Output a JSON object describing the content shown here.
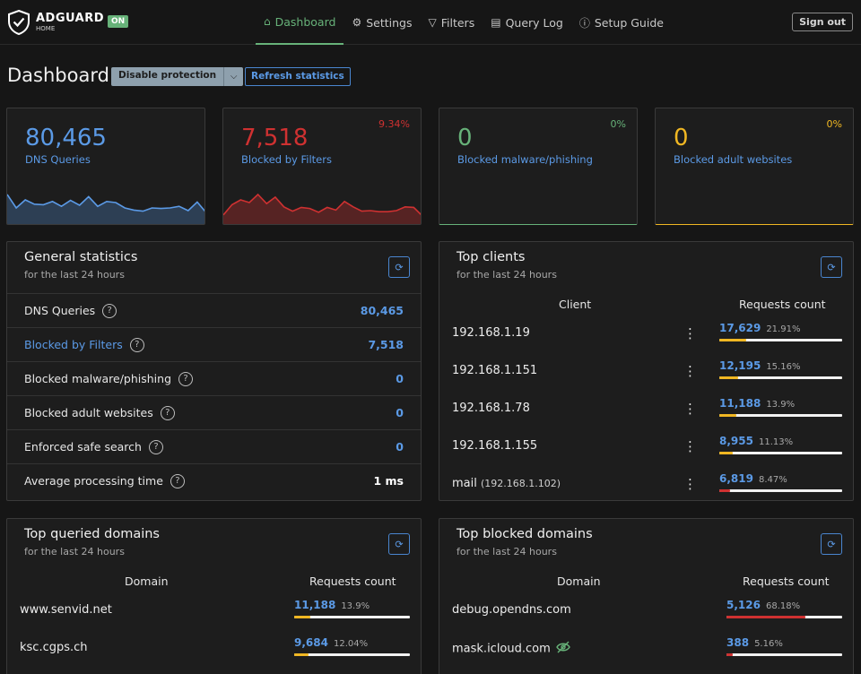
{
  "header": {
    "logo_title": "ADGUARD",
    "logo_sub": "HOME",
    "status_badge": "ON",
    "nav": [
      {
        "label": "Dashboard",
        "icon": "home-icon",
        "glyph": "⌂",
        "active": true
      },
      {
        "label": "Settings",
        "icon": "gear-icon",
        "glyph": "⚙",
        "active": false
      },
      {
        "label": "Filters",
        "icon": "filter-icon",
        "glyph": "▽",
        "active": false
      },
      {
        "label": "Query Log",
        "icon": "document-icon",
        "glyph": "▤",
        "active": false
      },
      {
        "label": "Setup Guide",
        "icon": "help-circle-icon",
        "glyph": "ⓘ",
        "active": false
      }
    ],
    "signout_label": "Sign out"
  },
  "page": {
    "title": "Dashboard",
    "disable_label": "Disable protection",
    "refresh_label": "Refresh statistics"
  },
  "colors": {
    "blue": "#5b9ae6",
    "red": "#cf3131",
    "green": "#67b279",
    "yellow": "#f0b723"
  },
  "stat_cards": {
    "dns": {
      "value": "80,465",
      "label": "DNS Queries",
      "pct": ""
    },
    "blocked": {
      "value": "7,518",
      "label": "Blocked by Filters",
      "pct": "9.34%"
    },
    "malware": {
      "value": "0",
      "label": "Blocked malware/phishing",
      "pct": "0%"
    },
    "adult": {
      "value": "0",
      "label": "Blocked adult websites",
      "pct": "0%"
    }
  },
  "general_stats": {
    "title": "General statistics",
    "subtitle": "for the last 24 hours",
    "rows": [
      {
        "label": "DNS Queries",
        "value": "80,465"
      },
      {
        "label": "Blocked by Filters",
        "value": "7,518"
      },
      {
        "label": "Blocked malware/phishing",
        "value": "0"
      },
      {
        "label": "Blocked adult websites",
        "value": "0"
      },
      {
        "label": "Enforced safe search",
        "value": "0"
      },
      {
        "label": "Average processing time",
        "value": "1 ms"
      }
    ]
  },
  "top_clients": {
    "title": "Top clients",
    "subtitle": "for the last 24 hours",
    "col_client": "Client",
    "col_count": "Requests count",
    "rows": [
      {
        "name": "192.168.1.19",
        "sub": "",
        "count": "17,629",
        "pct": "21.91%",
        "fraction": 0.2191
      },
      {
        "name": "192.168.1.151",
        "sub": "",
        "count": "12,195",
        "pct": "15.16%",
        "fraction": 0.1516
      },
      {
        "name": "192.168.1.78",
        "sub": "",
        "count": "11,188",
        "pct": "13.9%",
        "fraction": 0.139
      },
      {
        "name": "192.168.1.155",
        "sub": "",
        "count": "8,955",
        "pct": "11.13%",
        "fraction": 0.1113
      },
      {
        "name": "mail",
        "sub": "(192.168.1.102)",
        "count": "6,819",
        "pct": "8.47%",
        "fraction": 0.0847
      }
    ]
  },
  "top_queried": {
    "title": "Top queried domains",
    "subtitle": "for the last 24 hours",
    "col_domain": "Domain",
    "col_count": "Requests count",
    "rows": [
      {
        "name": "www.senvid.net",
        "count": "11,188",
        "pct": "13.9%",
        "fraction": 0.139
      },
      {
        "name": "ksc.cgps.ch",
        "count": "9,684",
        "pct": "12.04%",
        "fraction": 0.1204
      }
    ]
  },
  "top_blocked": {
    "title": "Top blocked domains",
    "subtitle": "for the last 24 hours",
    "col_domain": "Domain",
    "col_count": "Requests count",
    "rows": [
      {
        "name": "debug.opendns.com",
        "count": "5,126",
        "pct": "68.18%",
        "fraction": 0.6818
      },
      {
        "name": "mask.icloud.com",
        "count": "388",
        "pct": "5.16%",
        "fraction": 0.0516
      }
    ]
  },
  "sparklines": {
    "dns": [
      0.55,
      0.3,
      0.45,
      0.37,
      0.36,
      0.42,
      0.33,
      0.44,
      0.35,
      0.51,
      0.33,
      0.42,
      0.4,
      0.3,
      0.26,
      0.24,
      0.3,
      0.29,
      0.3,
      0.33,
      0.25,
      0.41,
      0.21
    ],
    "blocked": [
      0.17,
      0.36,
      0.45,
      0.4,
      0.55,
      0.38,
      0.5,
      0.32,
      0.24,
      0.31,
      0.29,
      0.22,
      0.31,
      0.26,
      0.42,
      0.32,
      0.24,
      0.25,
      0.23,
      0.23,
      0.25,
      0.32,
      0.31,
      0.15
    ]
  }
}
